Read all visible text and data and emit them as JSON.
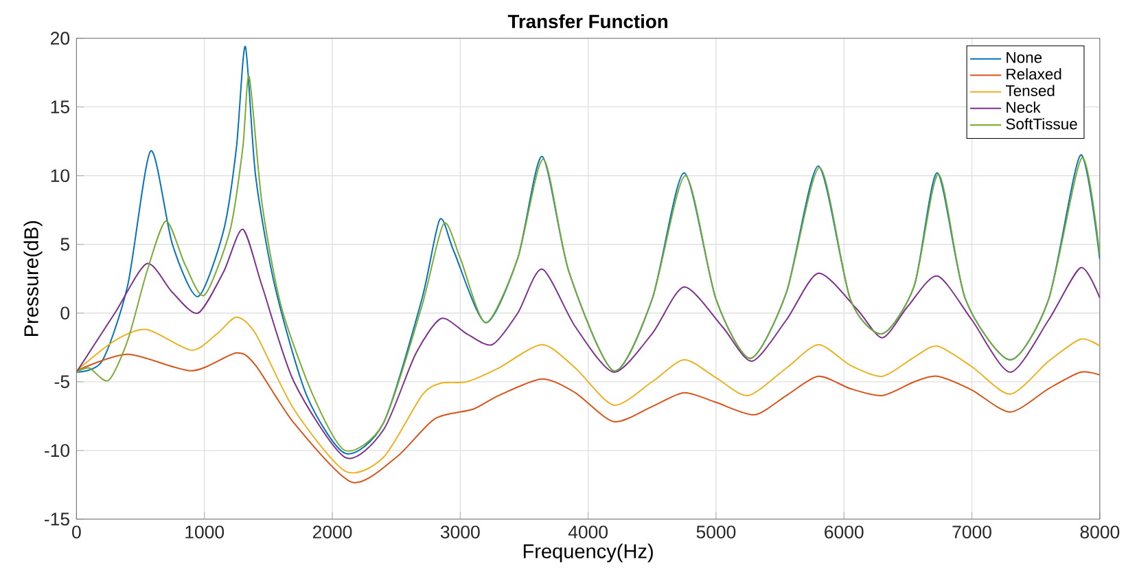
{
  "chart_data": {
    "type": "line",
    "title": "**Transfer Function**",
    "xlabel": "Frequency(Hz)",
    "ylabel": "Pressure(dB)",
    "xlim": [
      0,
      8000
    ],
    "ylim": [
      -15,
      20
    ],
    "xticks": [
      0,
      1000,
      2000,
      3000,
      4000,
      5000,
      6000,
      7000,
      8000
    ],
    "yticks": [
      -15,
      -10,
      -5,
      0,
      5,
      10,
      15,
      20
    ],
    "grid": true,
    "legend": "top right",
    "line_style": "solid",
    "marker": "none",
    "series": [
      {
        "name": "None",
        "color": "#0072bd",
        "x": [
          0,
          200,
          400,
          580,
          750,
          950,
          1150,
          1250,
          1320,
          1400,
          1550,
          1800,
          2100,
          2400,
          2700,
          2840,
          2950,
          3200,
          3450,
          3640,
          3850,
          4200,
          4500,
          4750,
          5000,
          5270,
          5550,
          5800,
          6050,
          6300,
          6550,
          6730,
          6950,
          7300,
          7600,
          7850,
          8000
        ],
        "values": [
          -4.3,
          -3.5,
          2,
          11.8,
          5,
          1.2,
          6,
          12,
          19.4,
          10,
          2,
          -6,
          -10.2,
          -8,
          1,
          6.8,
          4.5,
          -0.7,
          4,
          11.4,
          3,
          -4.2,
          1,
          10.2,
          1,
          -3.3,
          1.5,
          10.7,
          1,
          -1.5,
          2,
          10.2,
          1,
          -3.4,
          1,
          11.5,
          3.9
        ]
      },
      {
        "name": "Relaxed",
        "color": "#d95319",
        "x": [
          0,
          400,
          900,
          1250,
          1400,
          1700,
          2150,
          2500,
          2800,
          3100,
          3300,
          3640,
          3900,
          4200,
          4500,
          4750,
          5000,
          5300,
          5550,
          5800,
          6050,
          6300,
          6550,
          6730,
          7000,
          7300,
          7600,
          7850,
          8000
        ],
        "values": [
          -4.2,
          -3,
          -4.2,
          -2.9,
          -3.8,
          -8,
          -12.3,
          -10.5,
          -7.7,
          -7,
          -6,
          -4.8,
          -5.8,
          -7.9,
          -6.8,
          -5.8,
          -6.5,
          -7.4,
          -6,
          -4.6,
          -5.5,
          -6,
          -5,
          -4.6,
          -5.6,
          -7.2,
          -5.5,
          -4.3,
          -4.5
        ]
      },
      {
        "name": "Tensed",
        "color": "#edb120",
        "x": [
          0,
          300,
          550,
          900,
          1100,
          1250,
          1400,
          1700,
          2100,
          2400,
          2700,
          2850,
          3050,
          3300,
          3640,
          3900,
          4200,
          4500,
          4750,
          5000,
          5250,
          5550,
          5800,
          6050,
          6300,
          6550,
          6730,
          7000,
          7300,
          7600,
          7850,
          8000
        ],
        "values": [
          -4.2,
          -2,
          -1.2,
          -2.7,
          -1.5,
          -0.3,
          -1.5,
          -7,
          -11.5,
          -10.5,
          -6,
          -5.1,
          -5,
          -4,
          -2.3,
          -4,
          -6.7,
          -5,
          -3.4,
          -4.7,
          -6,
          -4,
          -2.3,
          -3.8,
          -4.6,
          -3.2,
          -2.4,
          -3.9,
          -5.9,
          -3.5,
          -1.9,
          -2.4
        ]
      },
      {
        "name": "Neck",
        "color": "#7e2f8e",
        "x": [
          0,
          300,
          550,
          750,
          950,
          1150,
          1300,
          1450,
          1700,
          2100,
          2400,
          2650,
          2850,
          3050,
          3250,
          3450,
          3640,
          3900,
          4200,
          4500,
          4750,
          5050,
          5280,
          5550,
          5800,
          6100,
          6300,
          6500,
          6730,
          7000,
          7300,
          7600,
          7850,
          8000
        ],
        "values": [
          -4.3,
          0,
          3.6,
          1.5,
          0,
          3,
          6.1,
          2,
          -5,
          -10.5,
          -8.5,
          -3,
          -0.4,
          -1.5,
          -2.3,
          0,
          3.2,
          -1,
          -4.3,
          -1.5,
          1.9,
          -1,
          -3.5,
          -0.5,
          2.9,
          0.3,
          -1.8,
          0.5,
          2.7,
          -0.5,
          -4.3,
          -0.5,
          3.3,
          1.1
        ]
      },
      {
        "name": "SoftTissue",
        "color": "#77ac30",
        "x": [
          0,
          100,
          250,
          400,
          550,
          700,
          850,
          1000,
          1200,
          1300,
          1350,
          1450,
          1600,
          1850,
          2100,
          2400,
          2700,
          2870,
          3000,
          3200,
          3450,
          3650,
          3850,
          4200,
          4500,
          4760,
          5000,
          5270,
          5550,
          5810,
          6050,
          6300,
          6550,
          6740,
          6950,
          7300,
          7600,
          7860,
          8000
        ],
        "values": [
          -4.3,
          -4,
          -4.9,
          -2,
          3,
          6.7,
          3.5,
          1.3,
          6,
          12,
          17.2,
          8,
          0.5,
          -6,
          -10,
          -8,
          0.5,
          6.5,
          4,
          -0.7,
          4,
          11.2,
          3,
          -4.2,
          1,
          10,
          1,
          -3.3,
          1.5,
          10.6,
          1,
          -1.5,
          2,
          10.1,
          1,
          -3.4,
          1,
          11.3,
          4.2
        ]
      }
    ]
  }
}
